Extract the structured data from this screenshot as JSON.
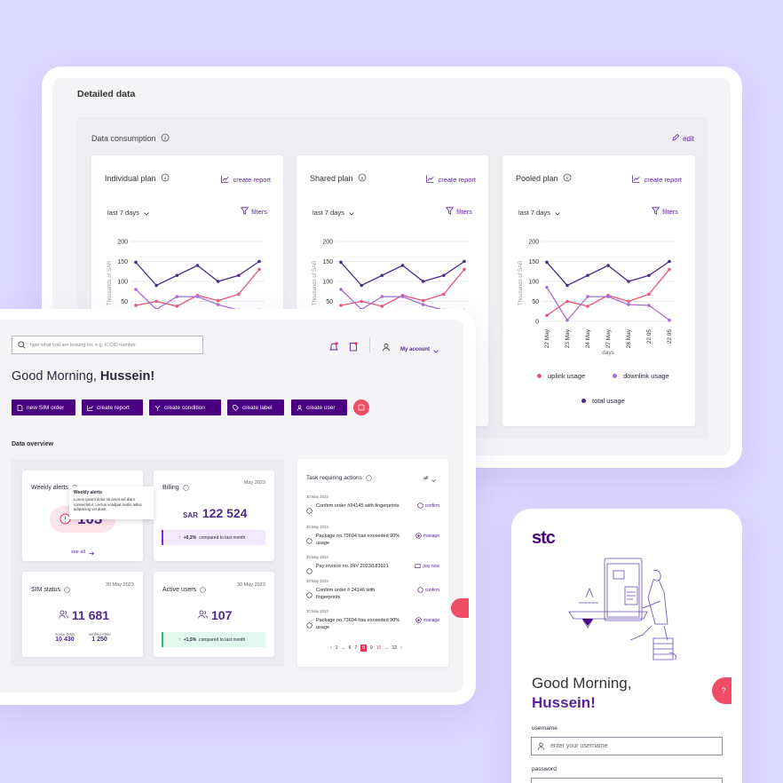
{
  "detail": {
    "title": "Detailed data",
    "consumption_title": "Data consumption",
    "edit": "edit",
    "plans": [
      {
        "title": "Individual plan",
        "create_report": "create report",
        "period": "last 7 days",
        "filters": "filters"
      },
      {
        "title": "Shared plan",
        "create_report": "create report",
        "period": "last 7 days",
        "filters": "filters"
      },
      {
        "title": "Pooled plan",
        "create_report": "create report",
        "period": "last 7 days",
        "filters": "filters"
      }
    ],
    "legend": {
      "uplink": "uplink usage",
      "downlink": "downlink usage",
      "total": "total usage"
    },
    "colors": {
      "uplink": "#e8587a",
      "downlink": "#a66fd4",
      "total": "#4b2a8a"
    }
  },
  "chart_data": [
    {
      "type": "line",
      "title": "Individual plan",
      "ylabel": "Thousands of SAR",
      "yticks": [
        "200",
        "150",
        "100",
        "50"
      ],
      "ylim": [
        0,
        200
      ],
      "series": [
        {
          "name": "total usage",
          "values": [
            148,
            90,
            115,
            140,
            100,
            115,
            150
          ]
        },
        {
          "name": "uplink usage",
          "values": [
            40,
            50,
            38,
            65,
            52,
            68,
            130
          ]
        },
        {
          "name": "downlink usage",
          "values": [
            80,
            30,
            62,
            62,
            42,
            28,
            28
          ]
        }
      ]
    },
    {
      "type": "line",
      "title": "Shared plan",
      "ylabel": "Thousands of SAR",
      "yticks": [
        "200",
        "150",
        "100",
        "50"
      ],
      "ylim": [
        0,
        200
      ],
      "series": [
        {
          "name": "total usage",
          "values": [
            148,
            90,
            115,
            140,
            100,
            115,
            150
          ]
        },
        {
          "name": "uplink usage",
          "values": [
            40,
            50,
            38,
            65,
            52,
            68,
            130
          ]
        },
        {
          "name": "downlink usage",
          "values": [
            80,
            30,
            62,
            62,
            42,
            28,
            28
          ]
        }
      ]
    },
    {
      "type": "line",
      "title": "Pooled plan",
      "ylabel": "Thousands of SAR",
      "xlabel": "days",
      "x": [
        "22 May",
        "23 May",
        "24 May",
        "27 May",
        "28 May",
        "22.05",
        "22.05"
      ],
      "yticks": [
        "200",
        "150",
        "100",
        "50",
        "0"
      ],
      "ylim": [
        0,
        200
      ],
      "series": [
        {
          "name": "total usage",
          "values": [
            148,
            90,
            115,
            140,
            100,
            115,
            150
          ]
        },
        {
          "name": "uplink usage",
          "values": [
            15,
            50,
            38,
            65,
            50,
            68,
            130
          ]
        },
        {
          "name": "downlink usage",
          "values": [
            85,
            3,
            62,
            62,
            42,
            40,
            3
          ]
        }
      ]
    }
  ],
  "dashboard": {
    "search_placeholder": "type what you are looking for, e.g. ICCID number",
    "account": "My account",
    "greeting": "Good Morning,",
    "name": "Hussein!",
    "actions": [
      "new SIM order",
      "create report",
      "create condition",
      "create label",
      "create user"
    ],
    "overview_title": "Data overview",
    "weekly": {
      "title": "Weekly alerts",
      "value": "103",
      "see_all": "see all",
      "tooltip_title": "Weekly alerts",
      "tooltip_text": "Lorem ipsum dolor sit amet vel diam consectetur. Lectus volutpat mollis tellus adipiscing vel diam."
    },
    "billing": {
      "title": "Billing",
      "date": "May 2023",
      "currency": "SAR",
      "value": "122 524",
      "delta": "+0,2%",
      "delta_text": "compared to last month"
    },
    "sim": {
      "title": "SIM status",
      "date": "30 May 2023",
      "value": "11 681",
      "active_label": "Active SIMs",
      "active": "10 430",
      "verified_label": "Verified SIMs",
      "verified": "1 250"
    },
    "users": {
      "title": "Active users",
      "date": "30 May 2023",
      "value": "107",
      "delta": "+1,5%",
      "delta_text": "compared to last month"
    },
    "tasks": {
      "title": "Task requiring actions",
      "filter": "all",
      "items": [
        {
          "date": "30 May 2023",
          "text": "Confirm order #24145 with fingerprints",
          "action": "confirm"
        },
        {
          "date": "30 May 2023",
          "text": "Package no.73694 has exceeded 90% usage",
          "action": "manage"
        },
        {
          "date": "30 May 2023",
          "text": "Pay invoice no. INV 2023/183921",
          "action": "pay now"
        },
        {
          "date": "30 May 2023",
          "text": "Confirm order # 24146 with fingerprints",
          "action": "confirm"
        },
        {
          "date": "30 May 2023",
          "text": "Package no.73694 has exceeded 90% usage",
          "action": "manage"
        }
      ],
      "pages": [
        "1",
        "...",
        "6",
        "7",
        "8",
        "9",
        "10",
        "...",
        "12"
      ]
    }
  },
  "mobile": {
    "logo": "stc",
    "greeting": "Good Morning,",
    "name": "Hussein!",
    "username_label": "username",
    "username_placeholder": "enter your username",
    "password_label": "password"
  }
}
